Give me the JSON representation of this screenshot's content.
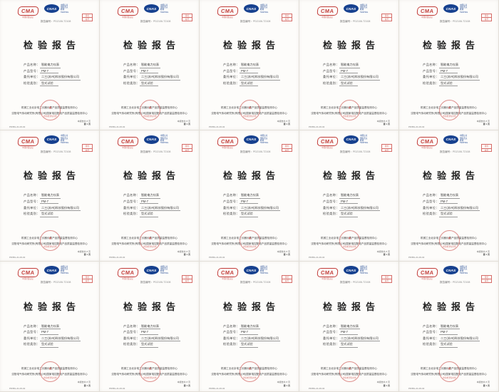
{
  "grid": {
    "cols": 5,
    "rows": 3,
    "count": 15
  },
  "colors": {
    "brand_red": "#c23b38",
    "brand_blue": "#17418f",
    "seal_red": "#c94844",
    "page_bg": "#fdfcfa"
  },
  "certificate": {
    "cma": {
      "text": "CMA",
      "sub": "中国计量认证"
    },
    "cnas": {
      "text": "CNAS",
      "side_lines": [
        "中国认可",
        "国际互认",
        "检测",
        "TESTING"
      ]
    },
    "corner_stamp": {
      "line1": "受控",
      "line2": "编号"
    },
    "report_no": {
      "label": "报告编号：",
      "value": "PD2106-T2108"
    },
    "title": "检验报告",
    "fields": [
      {
        "label": "产品名称：",
        "value": "智能电力仪表"
      },
      {
        "label": "产品型号：",
        "value": "PM-7"
      },
      {
        "label": "委托单位：",
        "value": "二三(苏州)科技股份有限公司"
      },
      {
        "label": "检验类别：",
        "value": "型式试验"
      }
    ],
    "seal": {
      "star": "★",
      "text": "检验检测专用章"
    },
    "footer_lines": [
      "机械工业北京电工仪器仪表产品质量监督检测中心",
      "沈阳电气传动研究所(有限公司)国家电控配电产品质量监督检测中心"
    ],
    "bottom_left": "PD/BG-21-06-02",
    "bottom_right_line1": "本报告共 8 页",
    "bottom_right_line2": "第 1 页"
  }
}
